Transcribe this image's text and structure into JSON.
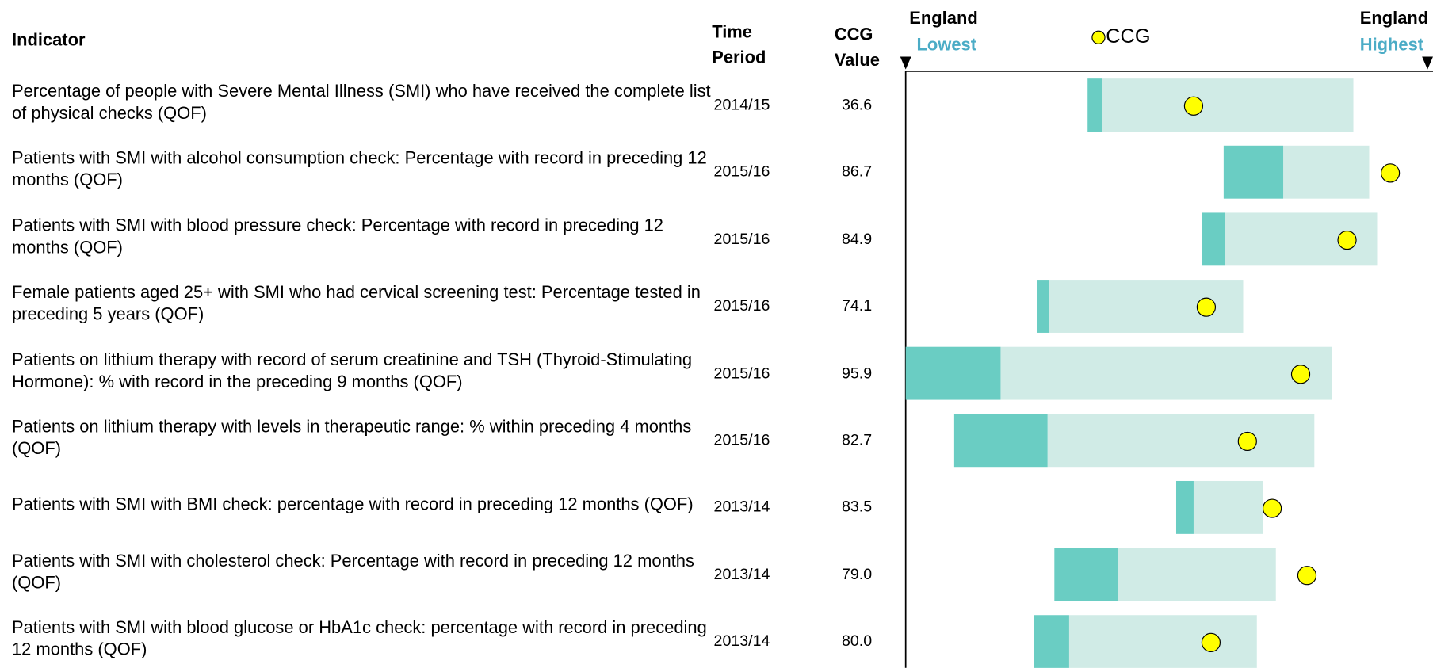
{
  "header": {
    "indicator": "Indicator",
    "time_period": "Time Period",
    "ccg_value": "CCG Value",
    "left_top": "England",
    "left_bottom": "Lowest",
    "legend": "CCG",
    "right_top": "England",
    "right_bottom": "Highest"
  },
  "rows": [
    {
      "indicator": "Percentage of people with Severe Mental Illness (SMI) who have received the complete list of physical checks (QOF)",
      "period": "2014/15",
      "value": "36.6",
      "spine": [
        34.5,
        37.3,
        84.9,
        54.6
      ]
    },
    {
      "indicator": "Patients with SMI with alcohol consumption check: Percentage with record in preceding 12 months (QOF)",
      "period": "2015/16",
      "value": "86.7",
      "spine": [
        60.3,
        71.6,
        87.9,
        91.9
      ]
    },
    {
      "indicator": "Patients with SMI with blood pressure check: Percentage with record in preceding 12 months  (QOF)",
      "period": "2015/16",
      "value": "84.9",
      "spine": [
        56.2,
        60.5,
        89.4,
        83.7
      ]
    },
    {
      "indicator": "Female patients aged 25+ with SMI who had cervical screening test: Percentage tested in preceding 5 years (QOF)",
      "period": "2015/16",
      "value": "74.1",
      "spine": [
        25.0,
        27.2,
        64.0,
        57.0
      ]
    },
    {
      "indicator": "Patients on lithium therapy with record of serum creatinine and TSH (Thyroid-Stimulating Hormone): % with record in the preceding 9 months (QOF)",
      "period": "2015/16",
      "value": "95.9",
      "spine": [
        0,
        18.0,
        80.9,
        74.9
      ]
    },
    {
      "indicator": "Patients on lithium therapy with levels in therapeutic range: % within preceding 4 months (QOF)",
      "period": "2015/16",
      "value": "82.7",
      "spine": [
        9.2,
        26.9,
        77.5,
        64.8
      ]
    },
    {
      "indicator": "Patients with SMI with BMI check: percentage with record in preceding 12 months (QOF)",
      "period": "2013/14",
      "value": "83.5",
      "spine": [
        51.3,
        54.6,
        67.8,
        69.5
      ]
    },
    {
      "indicator": "Patients with SMI with cholesterol check: Percentage with record in preceding 12 months (QOF)",
      "period": "2013/14",
      "value": "79.0",
      "spine": [
        28.2,
        40.2,
        70.2,
        76.1
      ]
    },
    {
      "indicator": "Patients with SMI with blood glucose or HbA1c check: percentage with record in preceding 12 months (QOF)",
      "period": "2013/14",
      "value": "80.0",
      "spine": [
        24.3,
        31.0,
        66.6,
        57.9
      ]
    }
  ]
}
